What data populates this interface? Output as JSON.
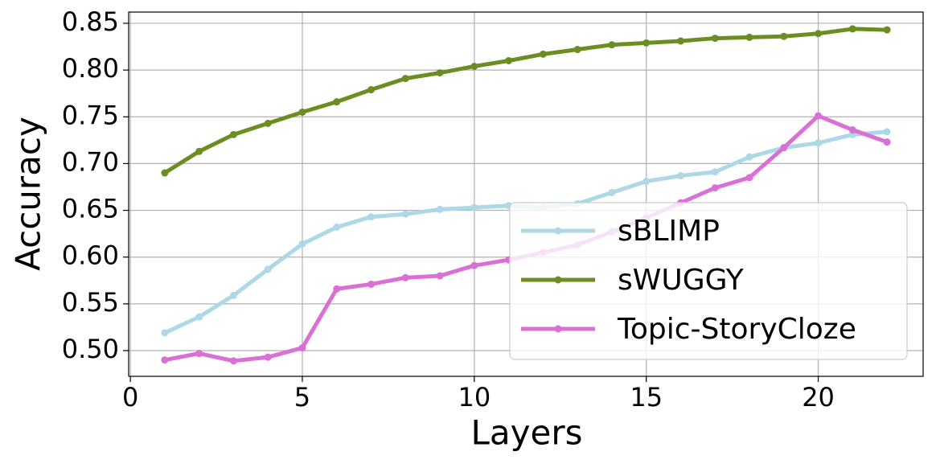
{
  "chart_data": {
    "type": "line",
    "x_label": "Layers",
    "y_label": "Accuracy",
    "x": [
      1,
      2,
      3,
      4,
      5,
      6,
      7,
      8,
      9,
      10,
      11,
      12,
      13,
      14,
      15,
      16,
      17,
      18,
      19,
      20,
      21,
      22
    ],
    "series": [
      {
        "name": "sBLIMP",
        "color": "#add8e6",
        "values": [
          0.519,
          0.536,
          0.559,
          0.587,
          0.614,
          0.632,
          0.643,
          0.646,
          0.651,
          0.653,
          0.655,
          0.653,
          0.657,
          0.669,
          0.681,
          0.687,
          0.691,
          0.707,
          0.717,
          0.722,
          0.731,
          0.734
        ]
      },
      {
        "name": "sWUGGY",
        "color": "#6b8e23",
        "values": [
          0.69,
          0.713,
          0.731,
          0.743,
          0.755,
          0.766,
          0.779,
          0.791,
          0.797,
          0.804,
          0.81,
          0.817,
          0.822,
          0.827,
          0.829,
          0.831,
          0.834,
          0.835,
          0.836,
          0.839,
          0.844,
          0.843
        ]
      },
      {
        "name": "Topic-StoryCloze",
        "color": "#da70d6",
        "values": [
          0.49,
          0.497,
          0.489,
          0.493,
          0.503,
          0.566,
          0.571,
          0.578,
          0.58,
          0.591,
          0.597,
          0.605,
          0.613,
          0.627,
          0.642,
          0.658,
          0.674,
          0.685,
          0.717,
          0.751,
          0.736,
          0.723
        ]
      }
    ],
    "xlim": [
      -0.05,
      23.05
    ],
    "xticks": [
      0,
      5,
      10,
      15,
      20
    ],
    "ylim": [
      0.4725,
      0.862
    ],
    "yticks": [
      {
        "value": 0.5,
        "label": "0.50"
      },
      {
        "value": 0.55,
        "label": "0.55"
      },
      {
        "value": 0.6,
        "label": "0.60"
      },
      {
        "value": 0.65,
        "label": "0.65"
      },
      {
        "value": 0.7,
        "label": "0.70"
      },
      {
        "value": 0.75,
        "label": "0.75"
      },
      {
        "value": 0.8,
        "label": "0.80"
      },
      {
        "value": 0.85,
        "label": "0.85"
      }
    ],
    "grid": true,
    "legend": "lower right"
  }
}
